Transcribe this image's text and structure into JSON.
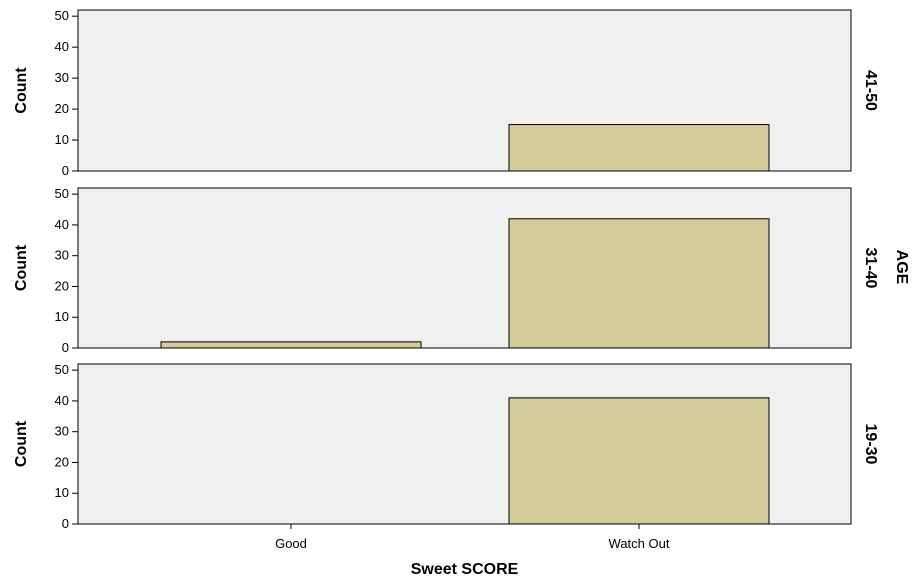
{
  "chart_data": {
    "type": "bar",
    "categories": [
      "Good",
      "Watch Out"
    ],
    "xlabel": "Sweet SCORE",
    "ylabel": "Count",
    "facet_label": "AGE",
    "ylim": [
      0,
      52
    ],
    "yticks": [
      0,
      10,
      20,
      30,
      40,
      50
    ],
    "grid": false,
    "panels": [
      {
        "facet": "41-50",
        "values": [
          0,
          15
        ]
      },
      {
        "facet": "31-40",
        "values": [
          2,
          42
        ]
      },
      {
        "facet": "19-30",
        "values": [
          0,
          41
        ]
      }
    ],
    "colors": {
      "bar_fill": "#d3cb98",
      "bar_stroke": "#000000",
      "panel_bg": "#f0f0f0"
    }
  }
}
